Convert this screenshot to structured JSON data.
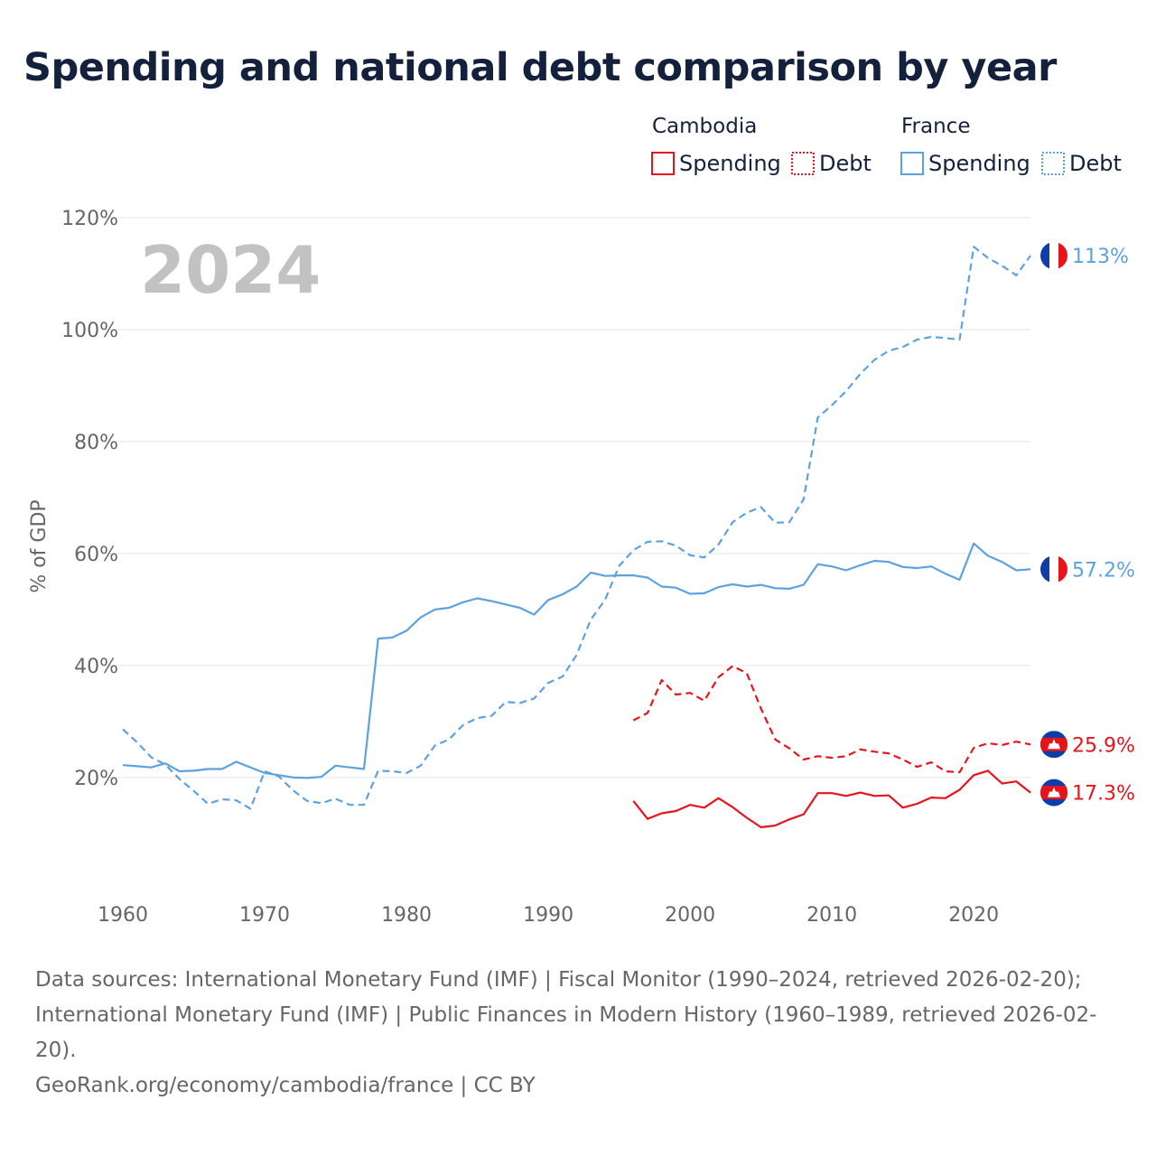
{
  "title": "Spending and national debt comparison by year",
  "year": "2024",
  "legend": {
    "groups": [
      {
        "name": "Cambodia",
        "items": [
          {
            "label": "Spending",
            "style": "solid"
          },
          {
            "label": "Debt",
            "style": "dotted"
          }
        ],
        "color": "#e8141c"
      },
      {
        "name": "France",
        "items": [
          {
            "label": "Spending",
            "style": "solid"
          },
          {
            "label": "Debt",
            "style": "dotted"
          }
        ],
        "color": "#5ca2e0"
      }
    ]
  },
  "colors": {
    "cambodia": "#e8141c",
    "france": "#5ca2e0",
    "grid": "#e6e6e6",
    "text": "#14213d"
  },
  "end_labels": {
    "france_debt": "113%",
    "france_spending": "57.2%",
    "cambodia_debt": "25.9%",
    "cambodia_spending": "17.3%"
  },
  "footer": {
    "sources": "Data sources: International Monetary Fund (IMF) | Fiscal Monitor (1990–2024, retrieved 2026-02-20); International Monetary Fund (IMF) | Public Finances in Modern History (1960–1989, retrieved 2026-02-20).",
    "credit": "GeoRank.org/economy/cambodia/france | CC BY"
  },
  "chart_data": {
    "type": "line",
    "title": "Spending and national debt comparison by year",
    "xlabel": "",
    "ylabel": "% of GDP",
    "xlim": [
      1960,
      2024
    ],
    "ylim": [
      4,
      120
    ],
    "x_ticks": [
      1960,
      1970,
      1980,
      1990,
      2000,
      2010,
      2020
    ],
    "y_ticks": [
      {
        "value": 20,
        "label": "20%"
      },
      {
        "value": 40,
        "label": "40%"
      },
      {
        "value": 60,
        "label": "60%"
      },
      {
        "value": 80,
        "label": "80%"
      },
      {
        "value": 100,
        "label": "100%"
      },
      {
        "value": 120,
        "label": "120%"
      }
    ],
    "series": [
      {
        "key": "france_spending",
        "name": "France Spending",
        "country": "France",
        "color": "#5ca2e0",
        "dash": "solid",
        "x": [
          1960,
          1961,
          1962,
          1963,
          1964,
          1965,
          1966,
          1967,
          1968,
          1969,
          1970,
          1971,
          1972,
          1973,
          1974,
          1975,
          1976,
          1977,
          1978,
          1979,
          1980,
          1981,
          1982,
          1983,
          1984,
          1985,
          1986,
          1987,
          1988,
          1989,
          1990,
          1991,
          1992,
          1993,
          1994,
          1995,
          1996,
          1997,
          1998,
          1999,
          2000,
          2001,
          2002,
          2003,
          2004,
          2005,
          2006,
          2007,
          2008,
          2009,
          2010,
          2011,
          2012,
          2013,
          2014,
          2015,
          2016,
          2017,
          2018,
          2019,
          2020,
          2021,
          2022,
          2023,
          2024
        ],
        "values": [
          22.2,
          22.0,
          21.8,
          22.5,
          21.1,
          21.2,
          21.5,
          21.5,
          22.8,
          21.8,
          20.8,
          20.4,
          20.0,
          19.9,
          20.1,
          22.1,
          21.8,
          21.5,
          44.8,
          45.0,
          46.2,
          48.6,
          50.0,
          50.3,
          51.3,
          52.0,
          51.5,
          50.9,
          50.3,
          49.1,
          51.7,
          52.7,
          54.1,
          56.6,
          56.0,
          56.1,
          56.1,
          55.7,
          54.1,
          53.9,
          52.8,
          52.9,
          54.0,
          54.5,
          54.1,
          54.4,
          53.8,
          53.7,
          54.4,
          58.1,
          57.7,
          57.0,
          57.9,
          58.7,
          58.5,
          57.6,
          57.4,
          57.7,
          56.4,
          55.3,
          61.8,
          59.6,
          58.5,
          57.0,
          57.2
        ]
      },
      {
        "key": "france_debt",
        "name": "France Debt",
        "country": "France",
        "color": "#5ca2e0",
        "dash": "dashed",
        "x": [
          1960,
          1961,
          1962,
          1963,
          1964,
          1965,
          1966,
          1967,
          1968,
          1969,
          1970,
          1971,
          1972,
          1973,
          1974,
          1975,
          1976,
          1977,
          1978,
          1979,
          1980,
          1981,
          1982,
          1983,
          1984,
          1985,
          1986,
          1987,
          1988,
          1989,
          1990,
          1991,
          1992,
          1993,
          1994,
          1995,
          1996,
          1997,
          1998,
          1999,
          2000,
          2001,
          2002,
          2003,
          2004,
          2005,
          2006,
          2007,
          2008,
          2009,
          2010,
          2011,
          2012,
          2013,
          2014,
          2015,
          2016,
          2017,
          2018,
          2019,
          2020,
          2021,
          2022,
          2023,
          2024
        ],
        "values": [
          28.6,
          26.3,
          23.6,
          22.3,
          19.7,
          17.6,
          15.3,
          16.1,
          15.9,
          14.4,
          21.1,
          20.2,
          17.7,
          15.8,
          15.4,
          16.2,
          15.1,
          15.1,
          21.2,
          21.1,
          20.8,
          22.1,
          25.7,
          26.8,
          29.4,
          30.6,
          31.0,
          33.5,
          33.3,
          34.1,
          36.9,
          38.0,
          41.9,
          48.2,
          51.7,
          57.8,
          60.6,
          62.1,
          62.2,
          61.4,
          59.7,
          59.3,
          61.6,
          65.6,
          67.3,
          68.3,
          65.5,
          65.6,
          69.7,
          84.3,
          86.5,
          89.0,
          92.1,
          94.6,
          96.2,
          96.9,
          98.2,
          98.7,
          98.5,
          98.2,
          114.8,
          112.8,
          111.4,
          109.7,
          113.2
        ]
      },
      {
        "key": "cambodia_spending",
        "name": "Cambodia Spending",
        "country": "Cambodia",
        "color": "#e8141c",
        "dash": "solid",
        "x": [
          1996,
          1997,
          1998,
          1999,
          2000,
          2001,
          2002,
          2003,
          2004,
          2005,
          2006,
          2007,
          2008,
          2009,
          2010,
          2011,
          2012,
          2013,
          2014,
          2015,
          2016,
          2017,
          2018,
          2019,
          2020,
          2021,
          2022,
          2023,
          2024
        ],
        "values": [
          15.8,
          12.6,
          13.6,
          14.0,
          15.1,
          14.6,
          16.3,
          14.7,
          12.8,
          11.1,
          11.4,
          12.5,
          13.4,
          17.2,
          17.2,
          16.7,
          17.3,
          16.7,
          16.8,
          14.6,
          15.3,
          16.4,
          16.3,
          17.8,
          20.4,
          21.2,
          18.9,
          19.3,
          17.3
        ]
      },
      {
        "key": "cambodia_debt",
        "name": "Cambodia Debt",
        "country": "Cambodia",
        "color": "#e8141c",
        "dash": "dashed",
        "x": [
          1996,
          1997,
          1998,
          1999,
          2000,
          2001,
          2002,
          2003,
          2004,
          2005,
          2006,
          2007,
          2008,
          2009,
          2010,
          2011,
          2012,
          2013,
          2014,
          2015,
          2016,
          2017,
          2018,
          2019,
          2020,
          2021,
          2022,
          2023,
          2024
        ],
        "values": [
          30.2,
          31.5,
          37.4,
          34.8,
          35.1,
          33.7,
          37.9,
          39.9,
          38.6,
          32.3,
          26.8,
          25.2,
          23.2,
          23.8,
          23.5,
          23.8,
          25.0,
          24.6,
          24.3,
          23.2,
          21.9,
          22.7,
          21.1,
          20.9,
          25.3,
          26.1,
          25.8,
          26.4,
          25.9
        ]
      }
    ]
  }
}
